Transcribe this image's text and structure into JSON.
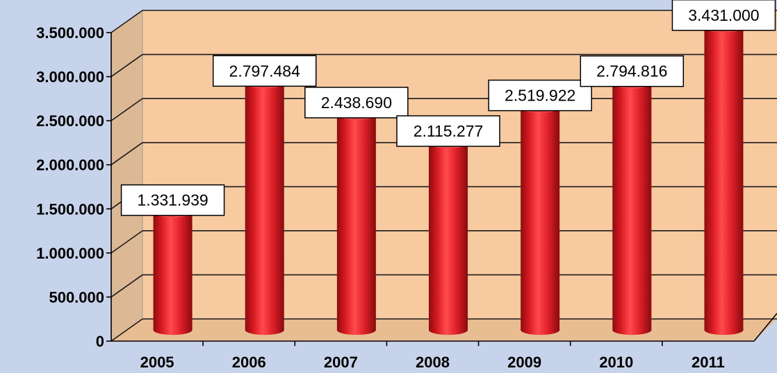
{
  "chart_data": {
    "type": "bar",
    "title": "",
    "xlabel": "",
    "ylabel": "",
    "categories": [
      "2005",
      "2006",
      "2007",
      "2008",
      "2009",
      "2010",
      "2011"
    ],
    "values": [
      1331939,
      2797484,
      2438690,
      2115277,
      2519922,
      2794816,
      3431000
    ],
    "value_labels": [
      "1.331.939",
      "2.797.484",
      "2.438.690",
      "2.115.277",
      "2.519.922",
      "2.794.816",
      "3.431.000"
    ],
    "ylim": [
      0,
      3500000
    ],
    "y_ticks": [
      0,
      500000,
      1000000,
      1500000,
      2000000,
      2500000,
      3000000,
      3500000
    ],
    "y_tick_labels": [
      "0",
      "500.000",
      "1.000.000",
      "1.500.000",
      "2.000.000",
      "2.500.000",
      "3.000.000",
      "3.500.000"
    ],
    "grid": true,
    "legend": "none",
    "style": "3d-cylinder",
    "colors": {
      "background": "#c7d3ea",
      "plot_wall": "#f7caa0",
      "bar": "#e8242a",
      "label_box": "#ffffff"
    }
  }
}
